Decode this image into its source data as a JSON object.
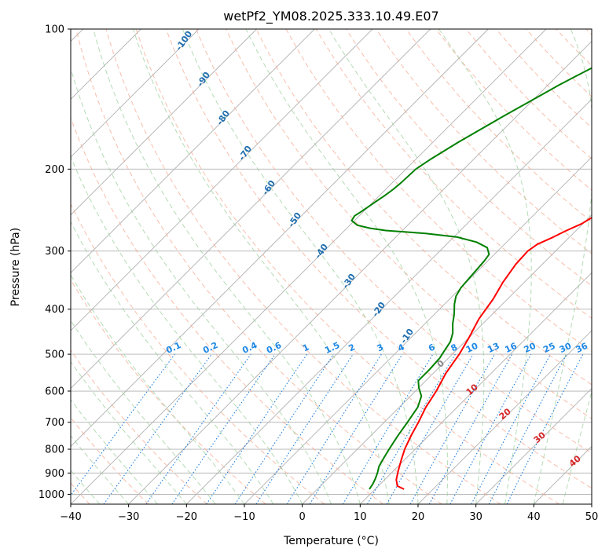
{
  "chart_data": {
    "type": "line",
    "title": "wetPf2_YM08.2025.333.10.49.E07",
    "xlabel": "Temperature (°C)",
    "ylabel": "Pressure (hPa)",
    "xlim": [
      -40,
      50
    ],
    "ylim": [
      1050,
      100
    ],
    "y_scale": "log",
    "grid": true,
    "x_ticks": [
      -40,
      -30,
      -20,
      -10,
      0,
      10,
      20,
      30,
      40,
      50
    ],
    "y_ticks": [
      100,
      200,
      300,
      400,
      500,
      600,
      700,
      800,
      900,
      1000
    ],
    "series": [
      {
        "role": "temperature",
        "color": "#ff0000",
        "points": [
          [
            15.0,
            975
          ],
          [
            13.3,
            960
          ],
          [
            12.0,
            930
          ],
          [
            10.8,
            890
          ],
          [
            9.5,
            845
          ],
          [
            8.2,
            800
          ],
          [
            7.0,
            750
          ],
          [
            5.9,
            700
          ],
          [
            4.6,
            650
          ],
          [
            3.6,
            600
          ],
          [
            2.2,
            550
          ],
          [
            1.2,
            500
          ],
          [
            0.0,
            460
          ],
          [
            -1.5,
            420
          ],
          [
            -2.5,
            380
          ],
          [
            -3.7,
            350
          ],
          [
            -4.6,
            320
          ],
          [
            -4.8,
            300
          ],
          [
            -4.3,
            290
          ],
          [
            -2.8,
            280
          ],
          [
            -1.8,
            272
          ],
          [
            -0.2,
            262
          ],
          [
            0.7,
            252
          ],
          [
            1.7,
            243
          ],
          [
            3.2,
            233
          ],
          [
            4.3,
            222
          ],
          [
            5.6,
            210
          ],
          [
            6.4,
            200
          ],
          [
            7.7,
            190
          ],
          [
            9.7,
            175
          ],
          [
            12.7,
            156
          ],
          [
            15.8,
            140
          ],
          [
            18.8,
            125
          ],
          [
            21.1,
            115
          ],
          [
            22.6,
            109
          ],
          [
            23.5,
            106
          ],
          [
            24.1,
            103
          ],
          [
            24.5,
            101
          ],
          [
            24.7,
            100
          ]
        ]
      },
      {
        "role": "dewpoint",
        "color": "#008000",
        "points": [
          [
            9.0,
            975
          ],
          [
            8.7,
            950
          ],
          [
            8.2,
            925
          ],
          [
            7.6,
            900
          ],
          [
            6.7,
            870
          ],
          [
            6.0,
            830
          ],
          [
            5.5,
            800
          ],
          [
            4.7,
            750
          ],
          [
            4.0,
            700
          ],
          [
            3.2,
            650
          ],
          [
            1.9,
            615
          ],
          [
            0.0,
            590
          ],
          [
            -1.3,
            570
          ],
          [
            -1.3,
            540
          ],
          [
            -1.5,
            510
          ],
          [
            -2.0,
            490
          ],
          [
            -2.5,
            470
          ],
          [
            -3.6,
            450
          ],
          [
            -5.2,
            430
          ],
          [
            -6.6,
            410
          ],
          [
            -8.3,
            390
          ],
          [
            -9.4,
            375
          ],
          [
            -10.0,
            360
          ],
          [
            -10.2,
            345
          ],
          [
            -10.4,
            330
          ],
          [
            -10.6,
            315
          ],
          [
            -10.9,
            305
          ],
          [
            -12.4,
            295
          ],
          [
            -15.2,
            287
          ],
          [
            -19.4,
            280
          ],
          [
            -25.5,
            275
          ],
          [
            -32.9,
            271
          ],
          [
            -36.0,
            268
          ],
          [
            -38.7,
            264
          ],
          [
            -40.5,
            258
          ],
          [
            -40.8,
            252
          ],
          [
            -40.4,
            247
          ],
          [
            -40.0,
            241
          ],
          [
            -39.6,
            235
          ],
          [
            -39.1,
            228
          ],
          [
            -38.7,
            221
          ],
          [
            -38.5,
            214
          ],
          [
            -38.4,
            207
          ],
          [
            -38.3,
            200
          ],
          [
            -37.4,
            190
          ],
          [
            -35.6,
            175
          ],
          [
            -32.5,
            155
          ],
          [
            -28.1,
            132
          ],
          [
            -26.9,
            127
          ],
          [
            -25.3,
            121
          ],
          [
            -24.1,
            117
          ],
          [
            -23.1,
            114
          ],
          [
            -22.6,
            113
          ],
          [
            -23.5,
            111
          ],
          [
            -24.3,
            109
          ],
          [
            -24.7,
            107
          ],
          [
            -23.9,
            105
          ],
          [
            -22.5,
            103
          ],
          [
            -21.0,
            101
          ],
          [
            -20.2,
            100
          ]
        ]
      }
    ],
    "mixing_ratio_labels": [
      "0.1",
      "0.2",
      "0.4",
      "0.6",
      "1",
      "1.5",
      "2",
      "3",
      "4",
      "6",
      "8",
      "10",
      "13",
      "16",
      "20",
      "25",
      "30",
      "36"
    ],
    "dry_adiabat_labels": [
      "-100",
      "-90",
      "-80",
      "-70",
      "-60",
      "-50",
      "-40",
      "-30",
      "-20",
      "-10"
    ],
    "moist_adiabat_labels": [
      "0",
      "10",
      "20",
      "30",
      "40"
    ],
    "colors": {
      "isotherm": "#b0b0b0",
      "pressure_grid": "#b0b0b0",
      "dry_adiabat": "#f6a88f",
      "moist_adiabat": "#9bcf9b",
      "mixing_ratio": "#1e7fe0",
      "dry_label": "#1f6fb0",
      "mixing_label": "#1e88e5",
      "moist_label_zero": "#8a8a8a",
      "moist_label_warm": "#d62728"
    }
  }
}
